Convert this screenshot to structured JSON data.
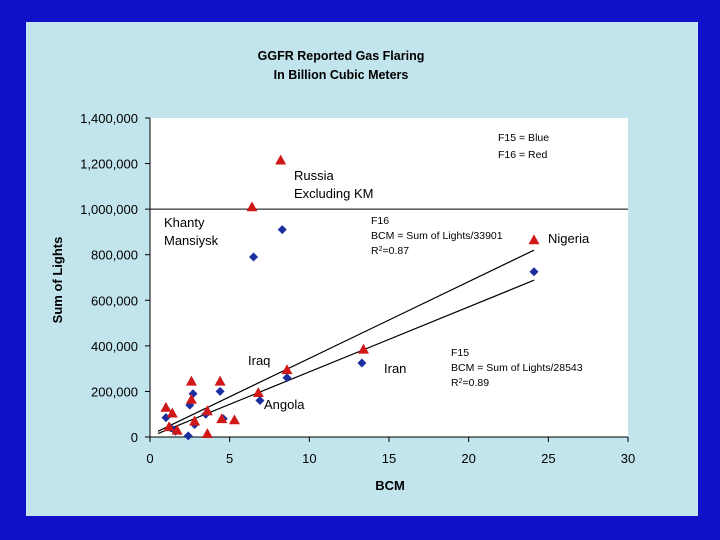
{
  "chart_data": {
    "type": "scatter",
    "title_lines": [
      "GGFR Reported Gas Flaring",
      "In Billion Cubic Meters"
    ],
    "xlabel": "BCM",
    "ylabel": "Sum of Lights",
    "xlim": [
      0,
      30
    ],
    "ylim": [
      0,
      1400000
    ],
    "x_ticks": [
      0,
      5,
      10,
      15,
      20,
      25,
      30
    ],
    "x_tick_labels": [
      "0",
      "5",
      "10",
      "15",
      "20",
      "25",
      "30"
    ],
    "y_ticks": [
      0,
      200000,
      400000,
      600000,
      800000,
      1000000,
      1200000,
      1400000
    ],
    "y_tick_labels": [
      "0",
      "200,000",
      "400,000",
      "600,000",
      "800,000",
      "1,000,000",
      "1,200,000",
      "1,400,000"
    ],
    "reference_line_y": 1000000,
    "series": [
      {
        "name": "F15",
        "color": "#1c2fa0",
        "marker": "diamond",
        "x": [
          1.0,
          1.3,
          1.6,
          2.5,
          2.7,
          2.8,
          2.4,
          3.5,
          4.4,
          4.6,
          6.5,
          6.9,
          8.3,
          8.6,
          13.3,
          24.1
        ],
        "y": [
          85000,
          40000,
          25000,
          140000,
          190000,
          55000,
          5000,
          100000,
          200000,
          80000,
          790000,
          160000,
          910000,
          260000,
          325000,
          725000
        ]
      },
      {
        "name": "F16",
        "color": "#d01818",
        "marker": "triangle",
        "x": [
          1.0,
          1.4,
          1.2,
          1.7,
          2.6,
          2.6,
          2.8,
          3.6,
          3.6,
          4.4,
          4.5,
          5.3,
          6.4,
          6.8,
          8.2,
          8.6,
          13.4,
          24.1
        ],
        "y": [
          130000,
          105000,
          45000,
          30000,
          245000,
          165000,
          70000,
          115000,
          15000,
          245000,
          80000,
          75000,
          1010000,
          195000,
          1215000,
          295000,
          385000,
          865000
        ]
      }
    ],
    "fit_lines": [
      {
        "name": "F16 fit",
        "x": [
          0.5,
          24.1
        ],
        "y": [
          25000,
          820000
        ]
      },
      {
        "name": "F15 fit",
        "x": [
          0.5,
          24.1
        ],
        "y": [
          15000,
          688000
        ]
      }
    ],
    "legend_note": [
      "F15 = Blue",
      "F16 = Red"
    ],
    "annotations": {
      "russia": [
        "Russia",
        "Excluding KM"
      ],
      "khanty": [
        "Khanty",
        "Mansiysk"
      ],
      "nigeria": "Nigeria",
      "iraq": "Iraq",
      "iran": "Iran",
      "angola": "Angola"
    },
    "equations": {
      "f16": [
        "F16",
        "BCM = Sum of Lights/33901",
        "R2=0.87"
      ],
      "f15": [
        "F15",
        "BCM = Sum of Lights/28543",
        "R2=0.89"
      ]
    }
  }
}
